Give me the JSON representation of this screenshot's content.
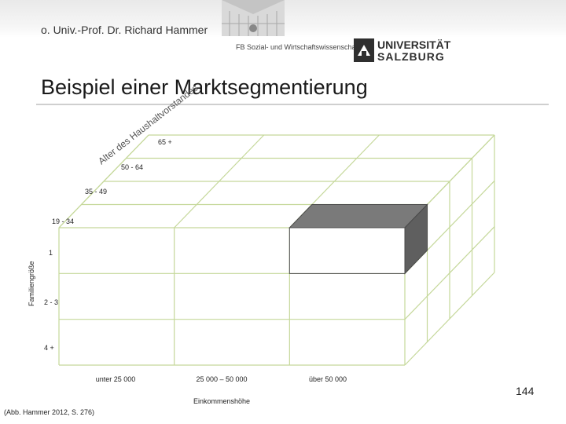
{
  "header": {
    "author": "o. Univ.-Prof. Dr. Richard Hammer",
    "department": "FB Sozial- und Wirtschaftswissenschaften",
    "logo_line1": "UNIVERSITÄT",
    "logo_line2": "SALZBURG"
  },
  "slide": {
    "title": "Beispiel einer Marktsegmentierung",
    "page_number": "144",
    "source": "(Abb. Hammer 2012, S. 276)"
  },
  "cube": {
    "depth_axis_label": "Alter des Haushaltvorstandes",
    "depth_categories": [
      "65 +",
      "50 - 64",
      "35 - 49",
      "19 - 34"
    ],
    "vertical_axis_label": "Familiengröße",
    "vertical_categories": [
      "1",
      "2 - 3",
      "4 +"
    ],
    "horizontal_axis_label": "Einkommenshöhe",
    "horizontal_categories": [
      "unter 25 000",
      "25 000 – 50 000",
      "über 50 000"
    ],
    "colors": {
      "grid": "#c5d89a",
      "segment_front": "#ffffff",
      "segment_top": "#7a7a7a",
      "segment_side": "#5f5f5f"
    },
    "highlighted_segment": {
      "income": "über 50 000",
      "family_size": "1",
      "age": "19 - 34"
    }
  }
}
